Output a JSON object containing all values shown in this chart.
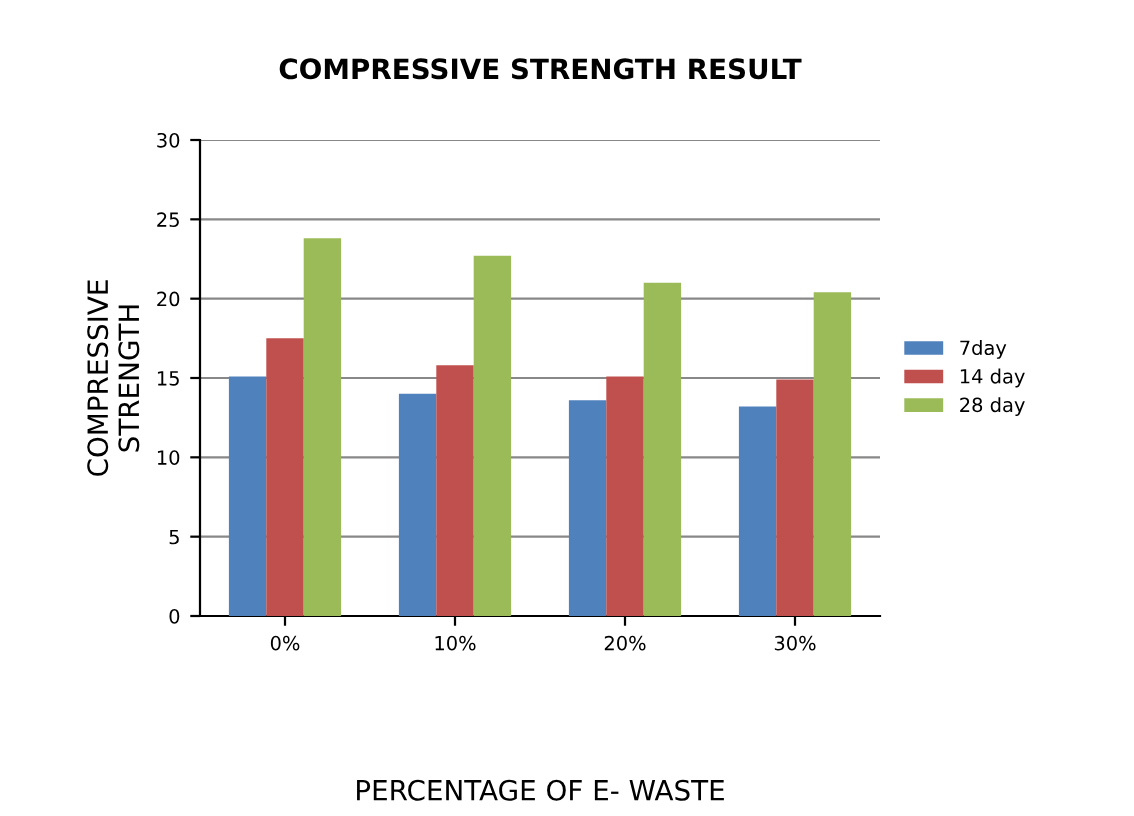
{
  "chart_data": {
    "type": "bar",
    "title": "COMPRESSIVE STRENGTH RESULT",
    "xlabel": "PERCENTAGE OF E- WASTE",
    "ylabel": "COMPRESSIVE\nSTRENGTH",
    "categories": [
      "0%",
      "10%",
      "20%",
      "30%"
    ],
    "series": [
      {
        "name": "7day",
        "color": "#4f81bd",
        "values": [
          15.1,
          14.0,
          13.6,
          13.2
        ]
      },
      {
        "name": "14 day",
        "color": "#c0504d",
        "values": [
          17.5,
          15.8,
          15.1,
          14.9
        ]
      },
      {
        "name": "28 day",
        "color": "#9bbb59",
        "values": [
          23.8,
          22.7,
          21.0,
          20.4
        ]
      }
    ],
    "ylim": [
      0,
      30
    ],
    "yticks": [
      0,
      5,
      10,
      15,
      20,
      25,
      30
    ],
    "grid": "y",
    "legend": "right"
  }
}
